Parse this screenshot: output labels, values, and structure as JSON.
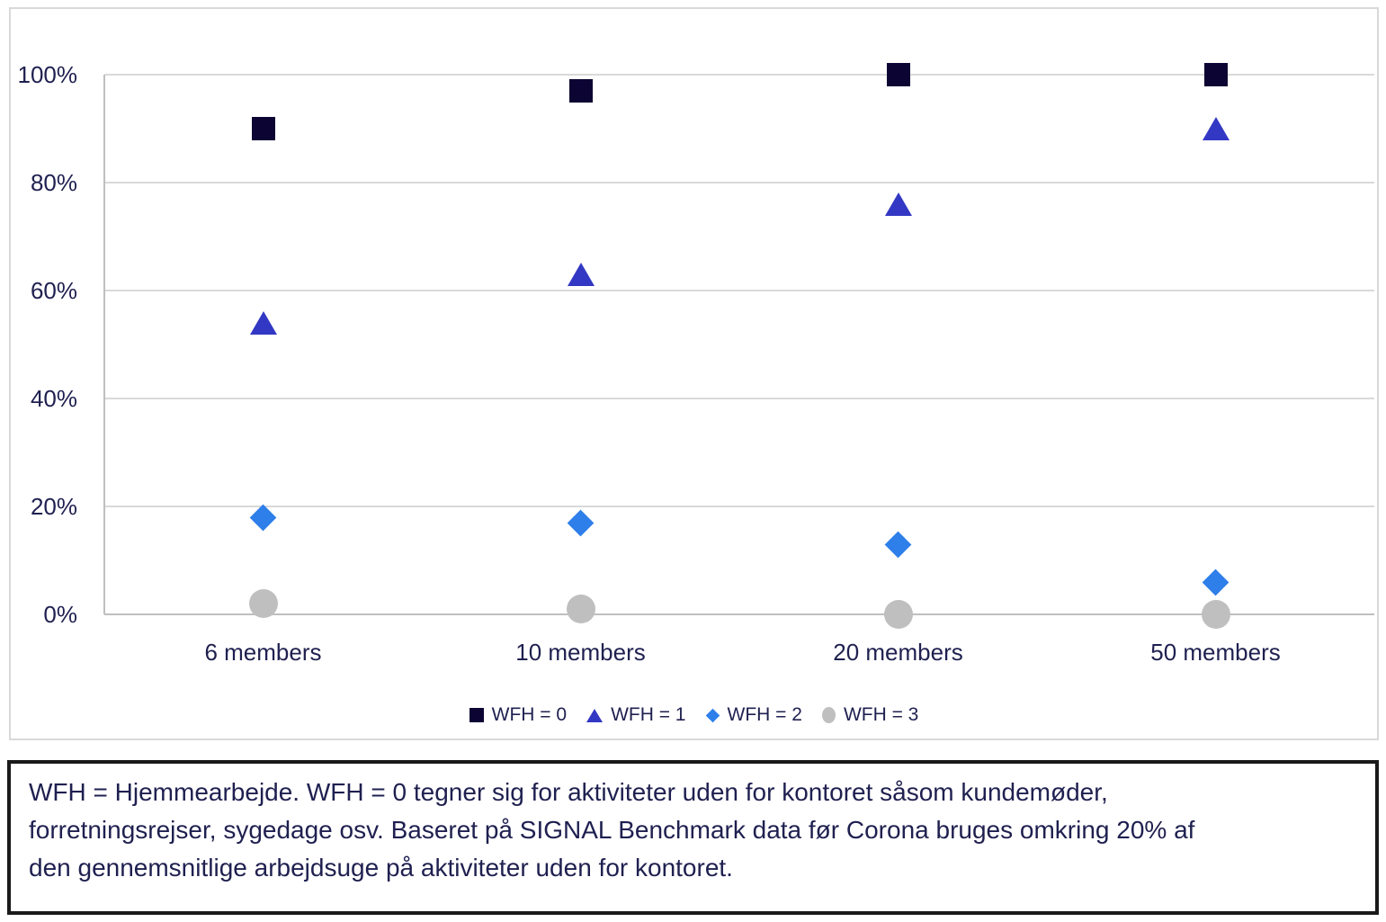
{
  "chart_data": {
    "type": "scatter",
    "title": "",
    "categories": [
      "6 members",
      "10 members",
      "20 members",
      "50 members"
    ],
    "series": [
      {
        "name": "WFH = 0",
        "marker": "square",
        "color": "#0C0433",
        "values": [
          90,
          97,
          100,
          100
        ]
      },
      {
        "name": "WFH = 1",
        "marker": "triangle",
        "color": "#3338C4",
        "values": [
          54,
          63,
          76,
          90
        ]
      },
      {
        "name": "WFH = 2",
        "marker": "diamond",
        "color": "#2E7FE9",
        "values": [
          18,
          17,
          13,
          6
        ]
      },
      {
        "name": "WFH = 3",
        "marker": "circle",
        "color": "#BFBFBF",
        "values": [
          2,
          1,
          0,
          0
        ]
      }
    ],
    "y_axis": {
      "tick_labels": [
        "100%",
        "80%",
        "60%",
        "40%",
        "20%",
        "0%"
      ],
      "tick_values": [
        100,
        80,
        60,
        40,
        20,
        0
      ],
      "min": 0,
      "max": 100
    },
    "grid": true,
    "legend_position": "bottom",
    "colors": {
      "gridline": "#D9D9D9",
      "axis_line": "#BFBFBF",
      "label_text": "#1F2050"
    }
  },
  "caption": {
    "lines": [
      "WFH = Hjemmearbejde. WFH = 0 tegner sig for aktiviteter uden for kontoret såsom kundemøder,",
      "forretningsrejser, sygedage osv. Baseret på SIGNAL Benchmark data før Corona bruges omkring 20% af",
      "den gennemsnitlige arbejdsuge på aktiviteter uden for kontoret."
    ]
  }
}
